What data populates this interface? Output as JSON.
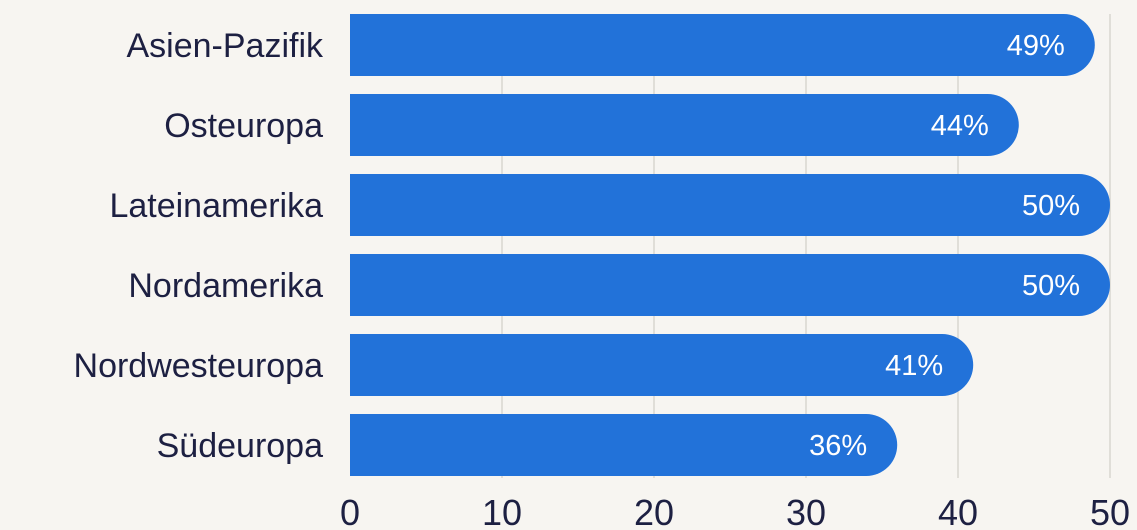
{
  "chart_data": {
    "type": "bar",
    "orientation": "horizontal",
    "categories": [
      "Asien-Pazifik",
      "Osteuropa",
      "Lateinamerika",
      "Nordamerika",
      "Nordwesteuropa",
      "Südeuropa"
    ],
    "values": [
      49,
      44,
      50,
      50,
      41,
      36
    ],
    "value_labels": [
      "49%",
      "44%",
      "50%",
      "50%",
      "41%",
      "36%"
    ],
    "xticks": [
      0,
      10,
      20,
      30,
      40,
      50
    ],
    "xlim": [
      0,
      50
    ],
    "grid": true,
    "colors": {
      "bar": "#2272d9",
      "text": "#1d2042",
      "background": "#f7f5f1",
      "grid": "#d9d6d0"
    }
  }
}
